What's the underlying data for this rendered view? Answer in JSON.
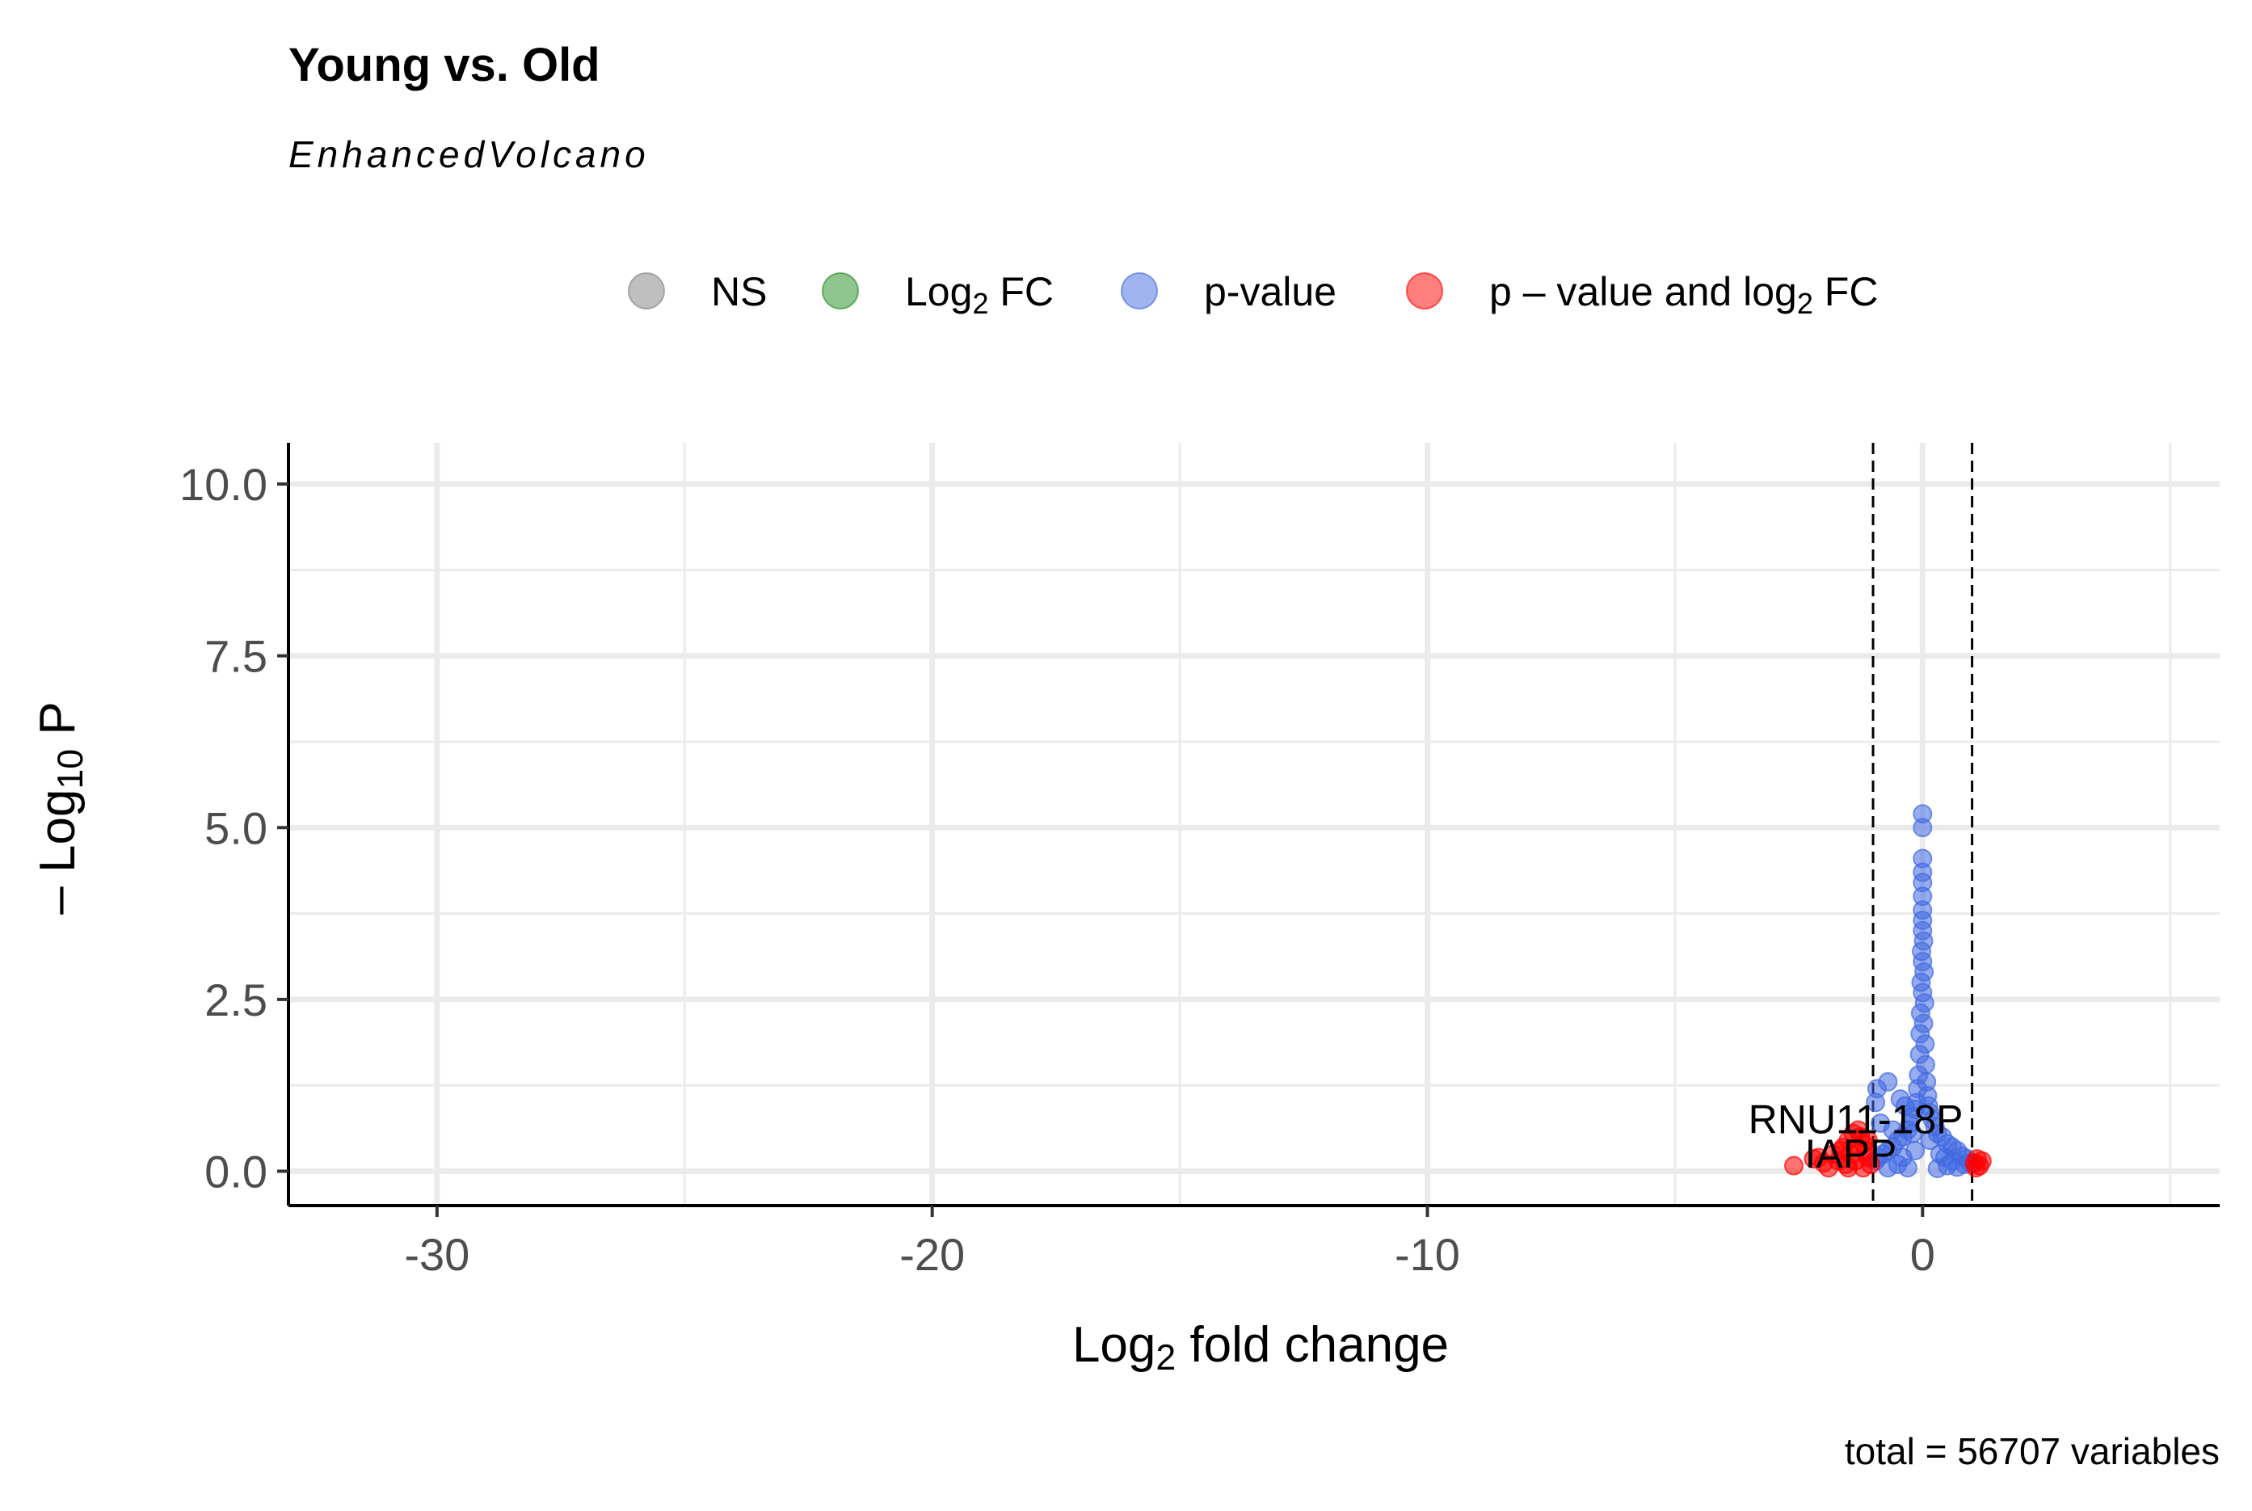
{
  "chart_data": {
    "type": "scatter",
    "title": "Young vs. Old",
    "subtitle": "EnhancedVolcano",
    "caption": "total = 56707 variables",
    "xlabel": {
      "pre": "Log",
      "sub": "2",
      "post": " fold change"
    },
    "ylabel": {
      "pre": "– Log",
      "sub": "10",
      "post": " P"
    },
    "xlim": [
      -33,
      6
    ],
    "ylim": [
      -0.5,
      10.6
    ],
    "xticks": [
      -30,
      -20,
      -10,
      0
    ],
    "xtick_labels": [
      "-30",
      "-20",
      "-10",
      "0"
    ],
    "x_minor": [
      -25,
      -15,
      -5,
      5
    ],
    "yticks": [
      0,
      2.5,
      5,
      7.5,
      10
    ],
    "ytick_labels": [
      "0.0",
      "2.5",
      "5.0",
      "7.5",
      "10.0"
    ],
    "y_minor": [
      1.25,
      3.75,
      6.25,
      8.75
    ],
    "fc_cutoff": [
      -1,
      1
    ],
    "grid": true,
    "legend_position": "top",
    "legend": [
      {
        "key": "NS",
        "label": "NS",
        "color": "#808080"
      },
      {
        "key": "FC",
        "label": {
          "pre": "Log",
          "sub": "2",
          "post": " FC"
        },
        "color": "#228B22"
      },
      {
        "key": "P",
        "label": "p-value",
        "color": "#4169E1"
      },
      {
        "key": "FC_P",
        "label": {
          "pre": "p – value and log",
          "sub": "2",
          "post": " FC"
        },
        "color": "#FF0000"
      }
    ],
    "series": [
      {
        "name": "p-value",
        "color": "#4169E1",
        "points": [
          [
            0,
            5.2
          ],
          [
            0,
            5.0
          ],
          [
            0,
            4.55
          ],
          [
            0,
            4.35
          ],
          [
            0,
            4.2
          ],
          [
            0,
            4.0
          ],
          [
            0,
            3.8
          ],
          [
            0,
            3.65
          ],
          [
            0,
            3.5
          ],
          [
            0.02,
            3.35
          ],
          [
            -0.02,
            3.2
          ],
          [
            0,
            3.05
          ],
          [
            0.03,
            2.9
          ],
          [
            -0.03,
            2.75
          ],
          [
            0,
            2.6
          ],
          [
            0.04,
            2.45
          ],
          [
            -0.04,
            2.3
          ],
          [
            0.02,
            2.15
          ],
          [
            -0.05,
            2.0
          ],
          [
            0.05,
            1.85
          ],
          [
            -0.06,
            1.7
          ],
          [
            0.06,
            1.55
          ],
          [
            -0.08,
            1.4
          ],
          [
            0.08,
            1.3
          ],
          [
            -0.1,
            1.2
          ],
          [
            0.1,
            1.1
          ],
          [
            -0.12,
            1.0
          ],
          [
            0.12,
            0.95
          ],
          [
            -0.15,
            0.9
          ],
          [
            0.15,
            0.85
          ],
          [
            -0.2,
            0.8
          ],
          [
            0.2,
            0.75
          ],
          [
            -0.25,
            0.7
          ],
          [
            0.25,
            0.65
          ],
          [
            -0.3,
            0.6
          ],
          [
            0.3,
            0.55
          ],
          [
            -0.4,
            0.5
          ],
          [
            0.4,
            0.5
          ],
          [
            -0.5,
            0.45
          ],
          [
            0.5,
            0.4
          ],
          [
            -0.6,
            0.35
          ],
          [
            0.6,
            0.35
          ],
          [
            -0.7,
            0.3
          ],
          [
            0.7,
            0.3
          ],
          [
            -0.8,
            0.25
          ],
          [
            0.8,
            0.22
          ],
          [
            -0.9,
            0.2
          ],
          [
            0.9,
            0.18
          ],
          [
            -0.95,
            0.15
          ],
          [
            0.95,
            0.12
          ],
          [
            -0.5,
            0.1
          ],
          [
            0.5,
            0.08
          ],
          [
            -0.3,
            0.05
          ],
          [
            0.3,
            0.04
          ],
          [
            -0.7,
            0.05
          ],
          [
            0.7,
            0.06
          ],
          [
            -0.92,
            1.2
          ],
          [
            -0.95,
            1.0
          ],
          [
            -0.7,
            1.3
          ],
          [
            -0.45,
            1.05
          ],
          [
            -0.35,
            0.95
          ],
          [
            -0.85,
            0.7
          ],
          [
            -0.6,
            0.6
          ],
          [
            -0.2,
            0.55
          ],
          [
            0.15,
            0.45
          ],
          [
            0.35,
            0.25
          ],
          [
            0.6,
            0.15
          ],
          [
            0.85,
            0.1
          ],
          [
            -0.15,
            0.3
          ],
          [
            -0.4,
            0.2
          ],
          [
            0.45,
            0.2
          ]
        ]
      },
      {
        "name": "p – value and log2 FC",
        "color": "#FF0000",
        "points": [
          [
            -2.6,
            0.08
          ],
          [
            -2.2,
            0.18
          ],
          [
            -2.0,
            0.12
          ],
          [
            -1.8,
            0.25
          ],
          [
            -1.6,
            0.35
          ],
          [
            -1.5,
            0.45
          ],
          [
            -1.4,
            0.55
          ],
          [
            -1.3,
            0.6
          ],
          [
            -1.25,
            0.5
          ],
          [
            -1.2,
            0.4
          ],
          [
            -1.15,
            0.3
          ],
          [
            -1.1,
            0.2
          ],
          [
            -1.05,
            0.1
          ],
          [
            -1.7,
            0.15
          ],
          [
            -1.9,
            0.05
          ],
          [
            -2.1,
            0.2
          ],
          [
            -1.35,
            0.15
          ],
          [
            -1.45,
            0.25
          ],
          [
            -1.55,
            0.1
          ],
          [
            -1.65,
            0.3
          ],
          [
            -1.2,
            0.05
          ],
          [
            -1.3,
            0.35
          ],
          [
            -1.1,
            0.45
          ],
          [
            -1.5,
            0.05
          ],
          [
            1.05,
            0.12
          ],
          [
            1.1,
            0.18
          ],
          [
            1.15,
            0.08
          ],
          [
            1.2,
            0.15
          ],
          [
            1.08,
            0.05
          ]
        ]
      }
    ],
    "annotations": [
      {
        "label": "RNU11-18P",
        "x": -1.35,
        "y": 0.55
      },
      {
        "label": "IAPP",
        "x": -1.45,
        "y": 0.05
      }
    ]
  }
}
